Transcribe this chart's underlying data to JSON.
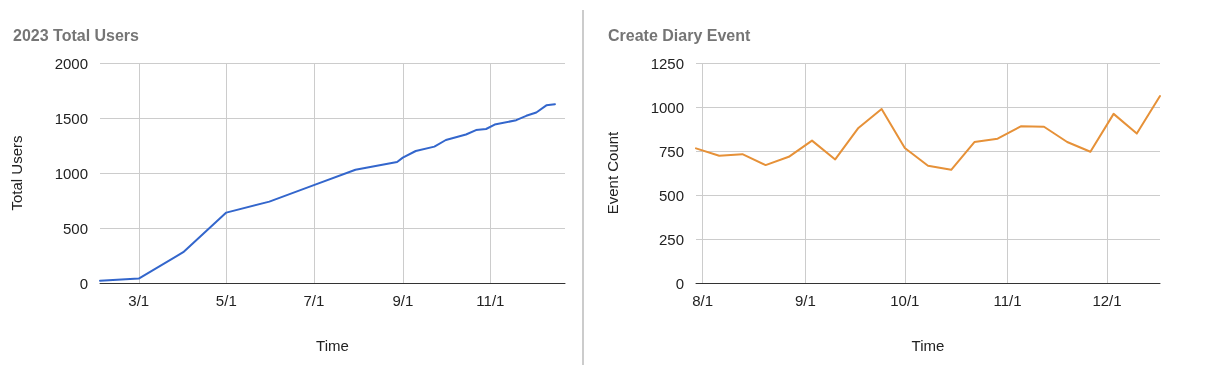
{
  "chart_data": [
    {
      "type": "line",
      "title": "2023 Total Users",
      "xlabel": "Time",
      "ylabel": "Total Users",
      "x": [
        "--02-02",
        "--03-01",
        "--04-01",
        "--05-01",
        "--05-31",
        "--07-01",
        "--07-30",
        "--08-28",
        "--09-01",
        "--09-10",
        "--09-23",
        "--10-01",
        "--10-15",
        "--10-22",
        "--10-29",
        "--11-04",
        "--11-19",
        "--11-26",
        "--12-03",
        "--12-10",
        "--12-16"
      ],
      "series": [
        {
          "color": "#3366cc",
          "values": [
            20,
            40,
            280,
            640,
            740,
            890,
            1030,
            1100,
            1140,
            1200,
            1240,
            1300,
            1350,
            1390,
            1400,
            1440,
            1480,
            1520,
            1550,
            1615,
            1625
          ]
        }
      ],
      "xlim": [
        "--02-02",
        "--12-23"
      ],
      "xticks": [
        {
          "value": "--03-01",
          "label": "3/1"
        },
        {
          "value": "--05-01",
          "label": "5/1"
        },
        {
          "value": "--07-01",
          "label": "7/1"
        },
        {
          "value": "--09-01",
          "label": "9/1"
        },
        {
          "value": "--11-01",
          "label": "11/1"
        }
      ],
      "ylim": [
        0,
        2000
      ],
      "yticks": [
        0,
        500,
        1000,
        1500,
        2000
      ],
      "grid": true,
      "marker": "none",
      "line_style": "solid"
    },
    {
      "type": "line",
      "title": "Create Diary Event",
      "xlabel": "Time",
      "ylabel": "Event Count",
      "x": [
        "--07-30",
        "--08-06",
        "--08-13",
        "--08-20",
        "--08-27",
        "--09-03",
        "--09-10",
        "--09-17",
        "--09-24",
        "--10-01",
        "--10-08",
        "--10-15",
        "--10-22",
        "--10-29",
        "--11-05",
        "--11-12",
        "--11-19",
        "--11-26",
        "--12-03",
        "--12-10",
        "--12-17"
      ],
      "series": [
        {
          "color": "#e69138",
          "values": [
            765,
            723,
            732,
            670,
            717,
            809,
            702,
            881,
            989,
            767,
            666,
            643,
            801,
            820,
            890,
            888,
            801,
            746,
            961,
            849,
            1062
          ]
        }
      ],
      "xlim": [
        "--07-30",
        "--12-17"
      ],
      "xticks": [
        {
          "value": "--08-01",
          "label": "8/1"
        },
        {
          "value": "--09-01",
          "label": "9/1"
        },
        {
          "value": "--10-01",
          "label": "10/1"
        },
        {
          "value": "--11-01",
          "label": "11/1"
        },
        {
          "value": "--12-01",
          "label": "12/1"
        }
      ],
      "ylim": [
        0,
        1250
      ],
      "yticks": [
        0,
        250,
        500,
        750,
        1000,
        1250
      ],
      "grid": true,
      "marker": "none",
      "line_style": "solid"
    }
  ]
}
